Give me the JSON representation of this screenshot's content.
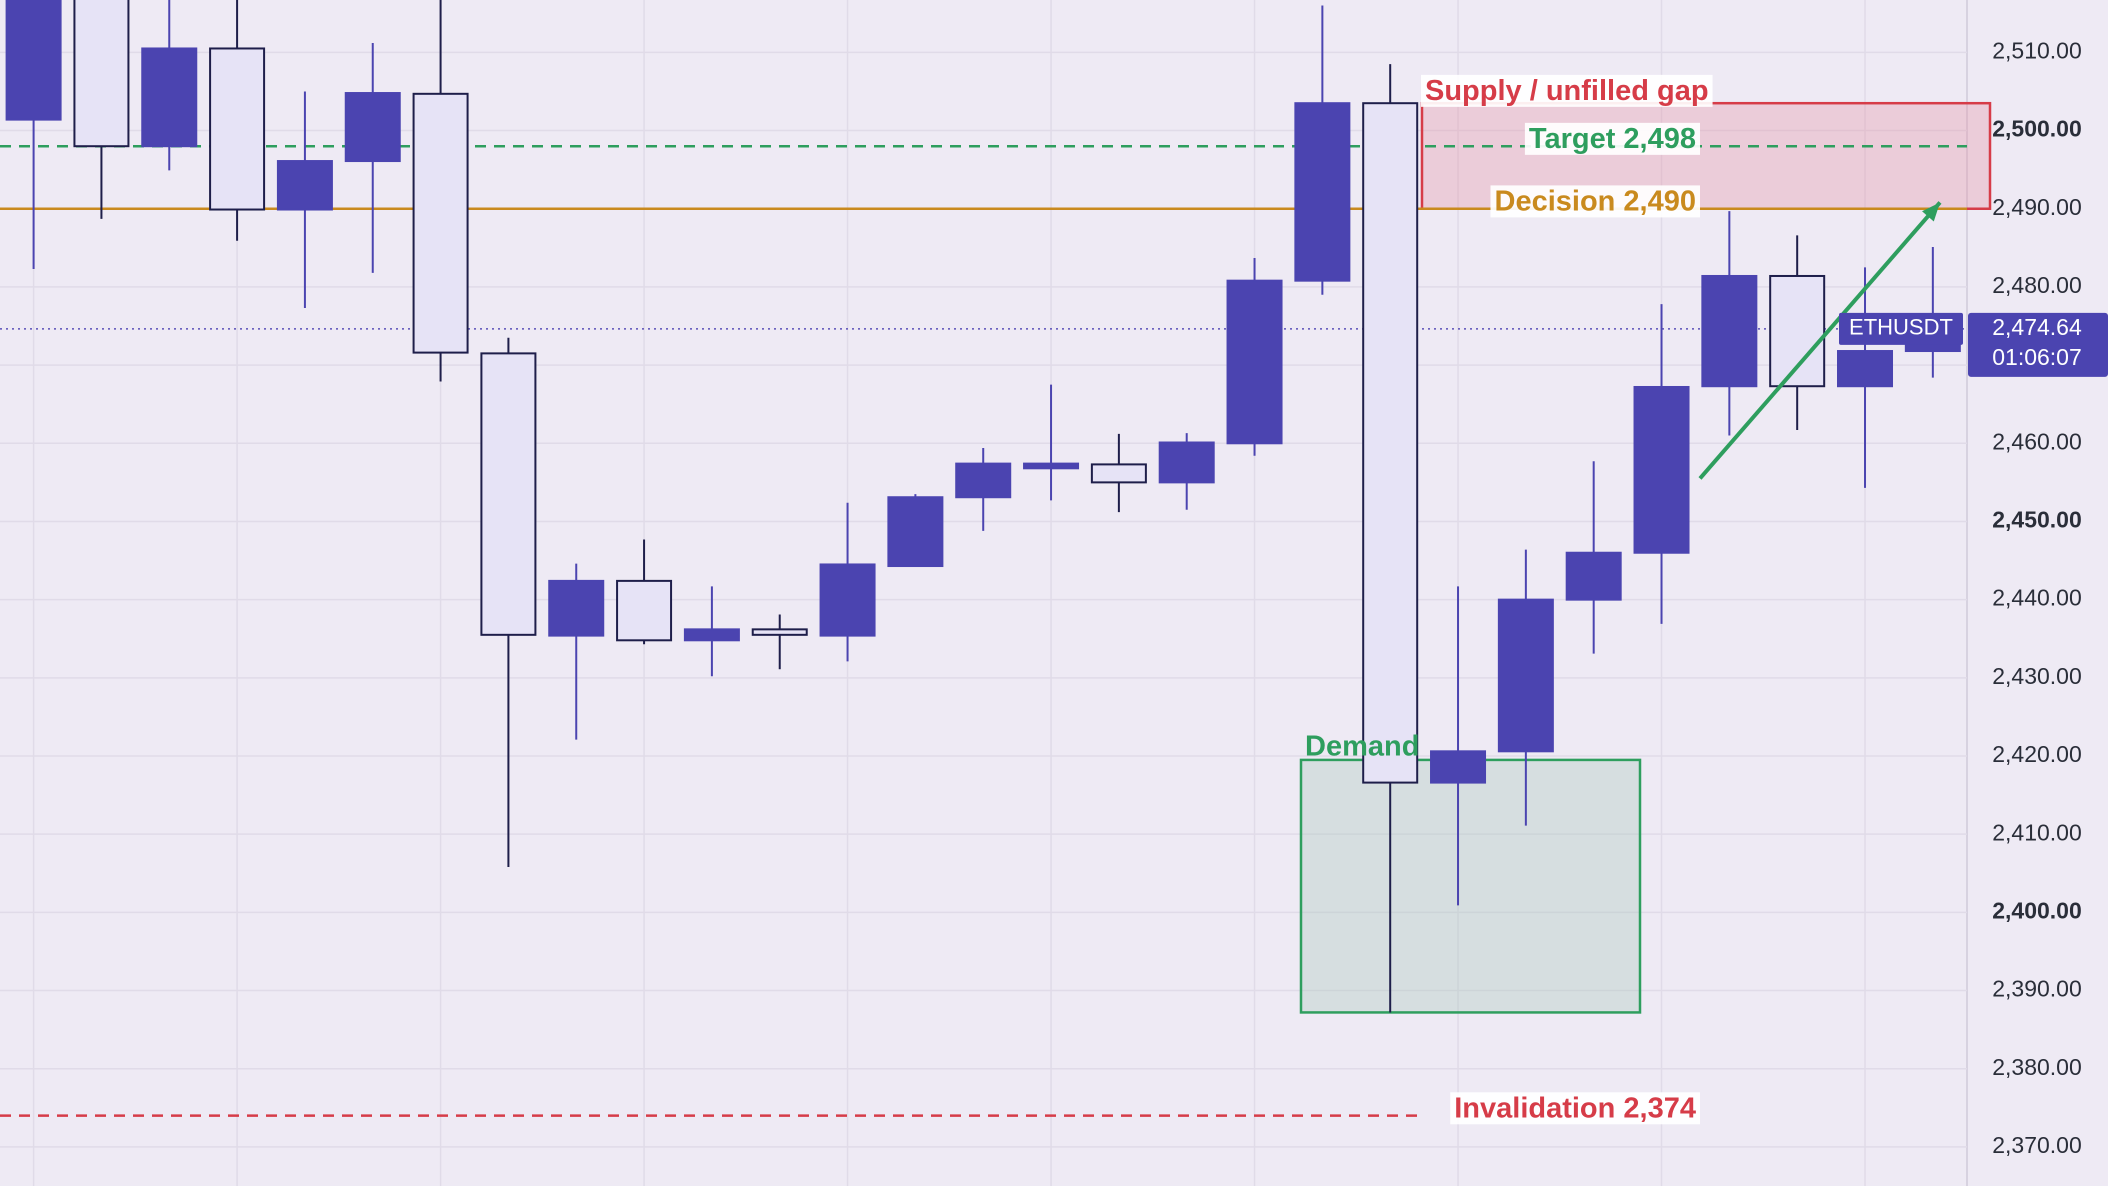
{
  "chart_data": {
    "type": "candlestick",
    "symbol": "ETHUSDT",
    "open": [
      2501.4,
      2520,
      2498,
      2510.5,
      2489.9,
      2496.1,
      2504.7,
      2471.5,
      2435.4,
      2442.4,
      2434.8,
      2436.2,
      2435.4,
      2444.3,
      2453.1,
      2456.8,
      2457.3,
      2455.0,
      2460.0,
      2480.8,
      2503.5,
      2416.6,
      2420.6,
      2440.0,
      2446.0,
      2467.3,
      2481.4,
      2467.3,
      2471.8
    ],
    "high": [
      2522,
      2525,
      2520,
      2518,
      2505.0,
      2511.2,
      2518,
      2473.5,
      2444.6,
      2447.7,
      2441.7,
      2438.1,
      2452.4,
      2453.5,
      2459.4,
      2467.5,
      2461.2,
      2461.3,
      2483.7,
      2516,
      2508.5,
      2441.7,
      2446.4,
      2457.7,
      2477.8,
      2489.7,
      2486.6,
      2482.5,
      2485.1
    ],
    "low": [
      2482.3,
      2488.7,
      2494.9,
      2485.9,
      2477.3,
      2481.8,
      2467.9,
      2405.8,
      2422.1,
      2434.3,
      2430.2,
      2431.1,
      2432.1,
      2444.3,
      2448.8,
      2452.7,
      2451.2,
      2451.5,
      2458.4,
      2479.0,
      2387.2,
      2400.9,
      2411.1,
      2433.1,
      2436.9,
      2461.0,
      2461.7,
      2454.3,
      2468.4
    ],
    "close": [
      2518,
      2498,
      2510.5,
      2489.9,
      2496.1,
      2504.8,
      2471.6,
      2435.5,
      2442.4,
      2434.8,
      2436.2,
      2435.5,
      2444.5,
      2453.1,
      2457.4,
      2457.4,
      2455.0,
      2460.1,
      2480.8,
      2503.5,
      2416.6,
      2420.6,
      2440.0,
      2446.0,
      2467.2,
      2481.4,
      2467.3,
      2471.8,
      2474.64
    ],
    "up_color": "#4b44b0",
    "down_color": "#e6e3f6",
    "ylim": [
      2365,
      2516.7
    ],
    "yticks": [
      {
        "value": 2370,
        "label": "2,370.00"
      },
      {
        "value": 2380,
        "label": "2,380.00"
      },
      {
        "value": 2390,
        "label": "2,390.00"
      },
      {
        "value": 2400,
        "label": "2,400.00"
      },
      {
        "value": 2410,
        "label": "2,410.00"
      },
      {
        "value": 2420,
        "label": "2,420.00"
      },
      {
        "value": 2430,
        "label": "2,430.00"
      },
      {
        "value": 2440,
        "label": "2,440.00"
      },
      {
        "value": 2450,
        "label": "2,450.00"
      },
      {
        "value": 2460,
        "label": "2,460.00"
      },
      {
        "value": 2470,
        "label": "2,470.00"
      },
      {
        "value": 2480,
        "label": "2,480.00"
      },
      {
        "value": 2490,
        "label": "2,490.00"
      },
      {
        "value": 2500,
        "label": "2,500.00"
      },
      {
        "value": 2510,
        "label": "2,510.00"
      }
    ],
    "grid": true,
    "last_price": {
      "value": 2474.64,
      "label": "2,474.64",
      "countdown": "01:06:07"
    },
    "levels": [
      {
        "label": "Target 2,498",
        "value": 2498,
        "color": "#2e9e5e",
        "style": "dashed"
      },
      {
        "label": "Decision 2,490",
        "value": 2490,
        "color": "#c98a1e",
        "style": "solid"
      },
      {
        "label": "Invalidation 2,374",
        "value": 2374,
        "color": "#d63c48",
        "style": "dashed"
      }
    ],
    "zones": [
      {
        "label": "Supply / unfilled gap",
        "top": 2503.5,
        "bottom": 2490,
        "color": "#d63c48"
      },
      {
        "label": "Demand",
        "top": 2419.5,
        "bottom": 2387.2,
        "color": "#2e9e5e"
      }
    ],
    "arrow": {
      "from": 2455.5,
      "to": 2490.8,
      "color": "#2e9e5e"
    }
  }
}
